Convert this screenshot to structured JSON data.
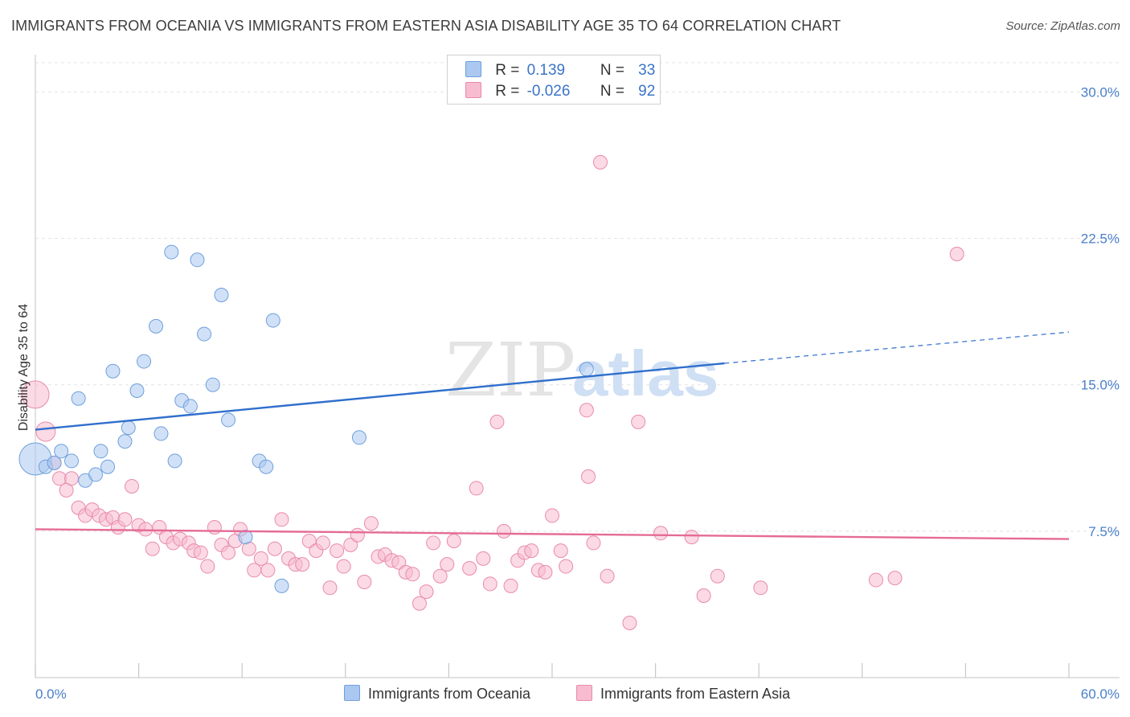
{
  "title": "IMMIGRANTS FROM OCEANIA VS IMMIGRANTS FROM EASTERN ASIA DISABILITY AGE 35 TO 64 CORRELATION CHART",
  "source": "Source: ZipAtlas.com",
  "watermark": {
    "zip": "ZIP",
    "atlas": "atlas"
  },
  "legend": {
    "rows": [
      {
        "r_label": "R =",
        "r_value": "0.139",
        "n_label": "N =",
        "n_value": "33"
      },
      {
        "r_label": "R =",
        "r_value": "-0.026",
        "n_label": "N =",
        "n_value": "92"
      }
    ]
  },
  "bottom_legend": {
    "oceania": "Immigrants from Oceania",
    "eastern_asia": "Immigrants from Eastern Asia"
  },
  "colors": {
    "oceania_fill": "#aac8f0",
    "oceania_stroke": "#6f9fdd",
    "oceania_line": "#2f6fcc",
    "asia_fill": "#f7bcd0",
    "asia_stroke": "#e98aab",
    "asia_line": "#e56b96",
    "tick": "#4a7fc9",
    "grid": "#e3e3e3"
  },
  "chart_data": {
    "type": "scatter",
    "title": "IMMIGRANTS FROM OCEANIA VS IMMIGRANTS FROM EASTERN ASIA DISABILITY AGE 35 TO 64 CORRELATION CHART",
    "xlabel": "",
    "ylabel": "Disability Age 35 to 64",
    "xlim": [
      0,
      60
    ],
    "ylim": [
      0,
      31.5
    ],
    "x_tick_labels": [
      "0.0%",
      "60.0%"
    ],
    "y_ticks": [
      {
        "value": 7.5,
        "label": "7.5%"
      },
      {
        "value": 15.0,
        "label": "15.0%"
      },
      {
        "value": 22.5,
        "label": "22.5%"
      },
      {
        "value": 30.0,
        "label": "30.0%"
      }
    ],
    "series": [
      {
        "name": "Immigrants from Oceania",
        "R": 0.139,
        "N": 33,
        "trend": {
          "x_start": 0,
          "y_start": 12.7,
          "x_solid_end": 40,
          "y_solid_end": 16.1,
          "x_end": 60,
          "y_end": 17.7
        },
        "points": [
          [
            0,
            11.2
          ],
          [
            0.6,
            10.8
          ],
          [
            1.1,
            11.0
          ],
          [
            1.5,
            11.6
          ],
          [
            2.1,
            11.1
          ],
          [
            2.5,
            14.3
          ],
          [
            2.9,
            10.1
          ],
          [
            3.5,
            10.4
          ],
          [
            3.8,
            11.6
          ],
          [
            4.2,
            10.8
          ],
          [
            4.5,
            15.7
          ],
          [
            5.2,
            12.1
          ],
          [
            5.4,
            12.8
          ],
          [
            5.9,
            14.7
          ],
          [
            6.3,
            16.2
          ],
          [
            7.0,
            18.0
          ],
          [
            7.3,
            12.5
          ],
          [
            7.9,
            21.8
          ],
          [
            8.1,
            11.1
          ],
          [
            8.5,
            14.2
          ],
          [
            9.0,
            13.9
          ],
          [
            9.4,
            21.4
          ],
          [
            9.8,
            17.6
          ],
          [
            10.3,
            15.0
          ],
          [
            10.8,
            19.6
          ],
          [
            11.2,
            13.2
          ],
          [
            12.2,
            7.2
          ],
          [
            13.0,
            11.1
          ],
          [
            13.4,
            10.8
          ],
          [
            13.8,
            18.3
          ],
          [
            14.3,
            4.7
          ],
          [
            18.8,
            12.3
          ],
          [
            32.0,
            15.8
          ]
        ]
      },
      {
        "name": "Immigrants from Eastern Asia",
        "R": -0.026,
        "N": 92,
        "trend": {
          "x_start": 0,
          "y_start": 7.6,
          "x_end": 60,
          "y_end": 7.1
        },
        "points": [
          [
            0,
            14.5
          ],
          [
            0.6,
            12.6
          ],
          [
            1.1,
            11.0
          ],
          [
            1.4,
            10.2
          ],
          [
            1.8,
            9.6
          ],
          [
            2.1,
            10.2
          ],
          [
            2.5,
            8.7
          ],
          [
            2.9,
            8.3
          ],
          [
            3.3,
            8.6
          ],
          [
            3.7,
            8.3
          ],
          [
            4.1,
            8.1
          ],
          [
            4.5,
            8.2
          ],
          [
            4.8,
            7.7
          ],
          [
            5.2,
            8.1
          ],
          [
            5.6,
            9.8
          ],
          [
            6.0,
            7.8
          ],
          [
            6.4,
            7.6
          ],
          [
            6.8,
            6.6
          ],
          [
            7.2,
            7.7
          ],
          [
            7.6,
            7.2
          ],
          [
            8.0,
            6.9
          ],
          [
            8.4,
            7.1
          ],
          [
            8.9,
            6.9
          ],
          [
            9.2,
            6.5
          ],
          [
            9.6,
            6.4
          ],
          [
            10.0,
            5.7
          ],
          [
            10.4,
            7.7
          ],
          [
            10.8,
            6.8
          ],
          [
            11.2,
            6.4
          ],
          [
            11.6,
            7.0
          ],
          [
            11.9,
            7.6
          ],
          [
            12.4,
            6.6
          ],
          [
            12.7,
            5.5
          ],
          [
            13.1,
            6.1
          ],
          [
            13.5,
            5.5
          ],
          [
            13.9,
            6.6
          ],
          [
            14.3,
            8.1
          ],
          [
            14.7,
            6.1
          ],
          [
            15.1,
            5.8
          ],
          [
            15.5,
            5.8
          ],
          [
            15.9,
            7.0
          ],
          [
            16.3,
            6.5
          ],
          [
            16.7,
            6.9
          ],
          [
            17.1,
            4.6
          ],
          [
            17.5,
            6.5
          ],
          [
            17.9,
            5.7
          ],
          [
            18.3,
            6.8
          ],
          [
            18.7,
            7.3
          ],
          [
            19.1,
            4.9
          ],
          [
            19.5,
            7.9
          ],
          [
            19.9,
            6.2
          ],
          [
            20.3,
            6.3
          ],
          [
            20.7,
            6.0
          ],
          [
            21.1,
            5.9
          ],
          [
            21.5,
            5.4
          ],
          [
            21.9,
            5.3
          ],
          [
            22.3,
            3.8
          ],
          [
            22.7,
            4.4
          ],
          [
            23.1,
            6.9
          ],
          [
            23.5,
            5.2
          ],
          [
            23.9,
            5.8
          ],
          [
            24.3,
            7.0
          ],
          [
            25.2,
            5.6
          ],
          [
            25.6,
            9.7
          ],
          [
            26.0,
            6.1
          ],
          [
            26.4,
            4.8
          ],
          [
            26.8,
            13.1
          ],
          [
            27.2,
            7.5
          ],
          [
            27.6,
            4.7
          ],
          [
            28.0,
            6.0
          ],
          [
            28.4,
            6.4
          ],
          [
            28.8,
            6.5
          ],
          [
            29.2,
            5.5
          ],
          [
            29.6,
            5.4
          ],
          [
            30.0,
            8.3
          ],
          [
            30.5,
            6.5
          ],
          [
            30.8,
            5.7
          ],
          [
            32.0,
            13.7
          ],
          [
            32.1,
            10.3
          ],
          [
            32.4,
            6.9
          ],
          [
            32.8,
            26.4
          ],
          [
            33.2,
            5.2
          ],
          [
            34.5,
            2.8
          ],
          [
            35.0,
            13.1
          ],
          [
            36.3,
            7.4
          ],
          [
            38.1,
            7.2
          ],
          [
            38.8,
            4.2
          ],
          [
            39.6,
            5.2
          ],
          [
            42.1,
            4.6
          ],
          [
            48.8,
            5.0
          ],
          [
            49.9,
            5.1
          ],
          [
            53.5,
            21.7
          ]
        ]
      }
    ]
  }
}
